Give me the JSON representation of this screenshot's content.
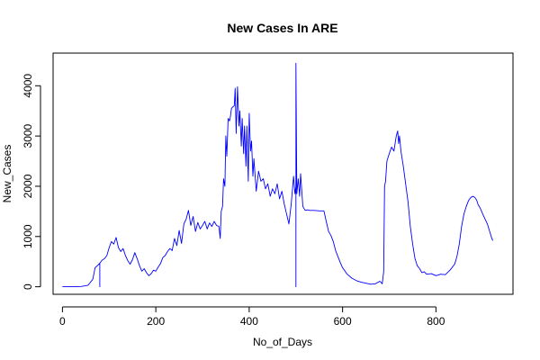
{
  "chart_data": {
    "type": "line",
    "title": "New Cases In ARE",
    "xlabel": "No_of_Days",
    "ylabel": "New_Cases",
    "xlim": [
      -20,
      965
    ],
    "ylim": [
      -150,
      4650
    ],
    "x_ticks": [
      0,
      200,
      400,
      600,
      800
    ],
    "y_ticks": [
      0,
      1000,
      2000,
      3000,
      4000
    ],
    "grid": false,
    "legend": "none",
    "series": [
      {
        "color": "#0000ff",
        "x": [
          0,
          20,
          40,
          55,
          65,
          70,
          75,
          80,
          80,
          80,
          85,
          90,
          95,
          100,
          105,
          110,
          115,
          120,
          125,
          130,
          135,
          140,
          145,
          150,
          155,
          160,
          165,
          170,
          175,
          180,
          185,
          190,
          195,
          200,
          205,
          210,
          215,
          220,
          225,
          230,
          235,
          240,
          245,
          250,
          255,
          260,
          265,
          270,
          275,
          280,
          285,
          290,
          295,
          300,
          305,
          310,
          315,
          320,
          325,
          330,
          335,
          338,
          340,
          343,
          345,
          348,
          350,
          352,
          355,
          358,
          360,
          362,
          365,
          368,
          370,
          372,
          375,
          378,
          380,
          383,
          385,
          388,
          390,
          393,
          395,
          398,
          400,
          403,
          405,
          408,
          410,
          415,
          420,
          425,
          430,
          435,
          440,
          445,
          450,
          455,
          460,
          465,
          470,
          475,
          480,
          485,
          490,
          495,
          498,
          500,
          500,
          500,
          502,
          505,
          508,
          510,
          515,
          520,
          525,
          530,
          540,
          550,
          560,
          565,
          570,
          575,
          580,
          585,
          590,
          595,
          600,
          610,
          620,
          630,
          640,
          650,
          660,
          670,
          680,
          685,
          688,
          690,
          692,
          695,
          700,
          705,
          710,
          715,
          718,
          720,
          722,
          725,
          730,
          735,
          740,
          745,
          750,
          755,
          760,
          765,
          770,
          775,
          780,
          790,
          800,
          810,
          820,
          830,
          840,
          845,
          850,
          855,
          860,
          865,
          870,
          875,
          880,
          885,
          888,
          890,
          895,
          900,
          905,
          910,
          915,
          920,
          922
        ],
        "y": [
          0,
          0,
          5,
          30,
          150,
          380,
          420,
          470,
          0,
          470,
          530,
          560,
          620,
          780,
          900,
          850,
          980,
          780,
          700,
          760,
          620,
          520,
          450,
          540,
          680,
          560,
          420,
          310,
          360,
          280,
          220,
          260,
          330,
          310,
          390,
          460,
          580,
          620,
          700,
          760,
          720,
          960,
          820,
          1120,
          860,
          1250,
          1350,
          1520,
          1220,
          1400,
          1100,
          1280,
          1150,
          1220,
          1300,
          1150,
          1270,
          1200,
          1300,
          1220,
          1200,
          960,
          1500,
          1600,
          2150,
          2000,
          3000,
          2600,
          3350,
          3300,
          3400,
          3550,
          3580,
          3600,
          3950,
          3050,
          3980,
          3200,
          3500,
          2800,
          3350,
          2650,
          3200,
          2400,
          3200,
          2100,
          3450,
          2700,
          2900,
          2200,
          2550,
          1900,
          2300,
          2100,
          2150,
          1950,
          2050,
          1800,
          1950,
          1850,
          2050,
          1750,
          1900,
          1650,
          1450,
          1250,
          1650,
          2200,
          1850,
          2000,
          0,
          4450,
          1850,
          2150,
          1800,
          2250,
          1600,
          1520,
          1530,
          1520,
          1520,
          1510,
          1510,
          1300,
          1100,
          1020,
          900,
          720,
          600,
          480,
          380,
          250,
          170,
          120,
          90,
          70,
          50,
          60,
          110,
          60,
          300,
          2000,
          2100,
          2500,
          2650,
          2780,
          2700,
          3000,
          3100,
          2850,
          3000,
          2700,
          2400,
          2050,
          1700,
          1200,
          850,
          560,
          420,
          360,
          280,
          300,
          250,
          260,
          220,
          250,
          240,
          330,
          450,
          600,
          850,
          1200,
          1450,
          1600,
          1720,
          1780,
          1800,
          1760,
          1700,
          1640,
          1560,
          1450,
          1350,
          1250,
          1100,
          950,
          920
        ]
      }
    ]
  }
}
